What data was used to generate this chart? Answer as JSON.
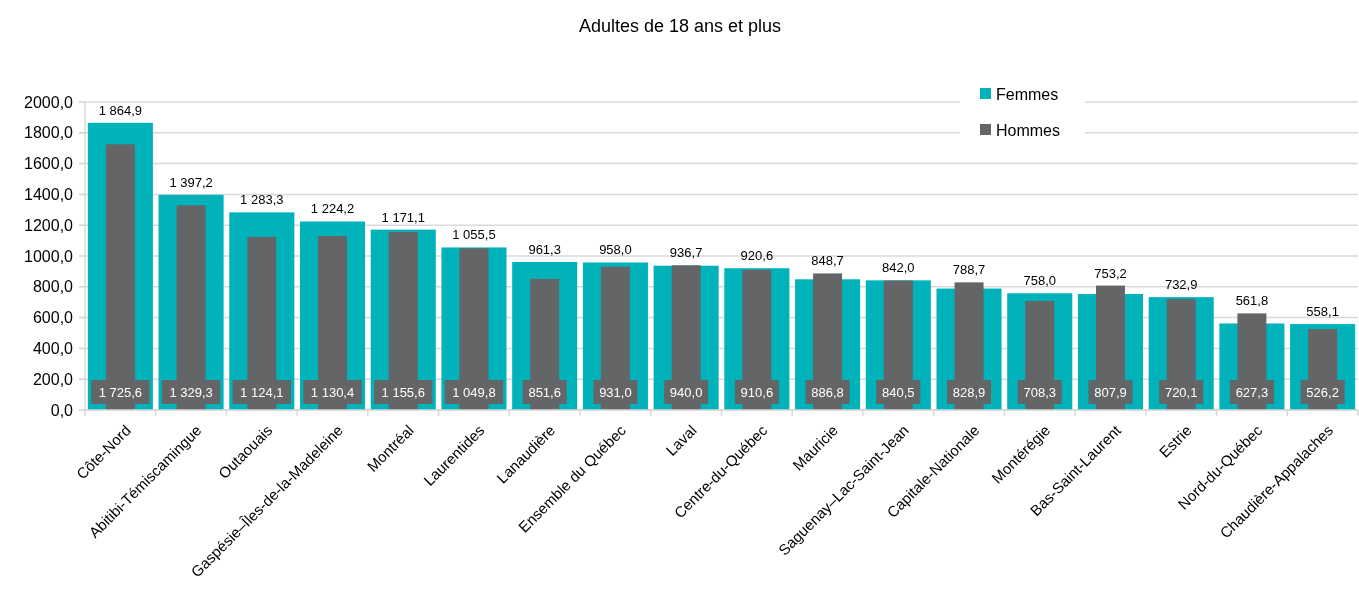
{
  "chart_data": {
    "type": "bar",
    "title": "Adultes de 18 ans et plus",
    "categories": [
      "Côte-Nord",
      "Abitibi-Témiscamingue",
      "Outaouais",
      "Gaspésie–Îles-de-la-Madeleine",
      "Montréal",
      "Laurentides",
      "Lanaudière",
      "Ensemble du Québec",
      "Laval",
      "Centre-du-Québec",
      "Mauricie",
      "Saguenay–Lac-Saint-Jean",
      "Capitale-Nationale",
      "Montérégie",
      "Bas-Saint-Laurent",
      "Estrie",
      "Nord-du-Québec",
      "Chaudière-Appalaches"
    ],
    "series": [
      {
        "name": "Femmes",
        "color": "#00b3ba",
        "values": [
          1864.9,
          1397.2,
          1283.3,
          1224.2,
          1171.1,
          1055.5,
          961.3,
          958.0,
          936.7,
          920.6,
          848.7,
          842.0,
          788.7,
          758.0,
          753.2,
          732.9,
          561.8,
          558.1
        ],
        "value_labels": [
          "1 864,9",
          "1 397,2",
          "1 283,3",
          "1 224,2",
          "1 171,1",
          "1 055,5",
          "961,3",
          "958,0",
          "936,7",
          "920,6",
          "848,7",
          "842,0",
          "788,7",
          "758,0",
          "753,2",
          "732,9",
          "561,8",
          "558,1"
        ]
      },
      {
        "name": "Hommes",
        "color": "#646567",
        "values": [
          1725.6,
          1329.3,
          1124.1,
          1130.4,
          1155.6,
          1049.8,
          851.6,
          931.0,
          940.0,
          910.6,
          886.8,
          840.5,
          828.9,
          708.3,
          807.9,
          720.1,
          627.3,
          526.2
        ],
        "value_labels": [
          "1 725,6",
          "1 329,3",
          "1 124,1",
          "1 130,4",
          "1 155,6",
          "1 049,8",
          "851,6",
          "931,0",
          "940,0",
          "910,6",
          "886,8",
          "840,5",
          "828,9",
          "708,3",
          "807,9",
          "720,1",
          "627,3",
          "526,2"
        ]
      }
    ],
    "ylim": [
      0,
      2000
    ],
    "yticks": [
      {
        "value": 0,
        "label": "0,0"
      },
      {
        "value": 200,
        "label": "200,0"
      },
      {
        "value": 400,
        "label": "400,0"
      },
      {
        "value": 600,
        "label": "600,0"
      },
      {
        "value": 800,
        "label": "800,0"
      },
      {
        "value": 1000,
        "label": "1000,0"
      },
      {
        "value": 1200,
        "label": "1200,0"
      },
      {
        "value": 1400,
        "label": "1400,0"
      },
      {
        "value": 1600,
        "label": "1600,0"
      },
      {
        "value": 1800,
        "label": "1800,0"
      },
      {
        "value": 2000,
        "label": "2000,0"
      }
    ],
    "grid": "y",
    "legend": "top right"
  }
}
